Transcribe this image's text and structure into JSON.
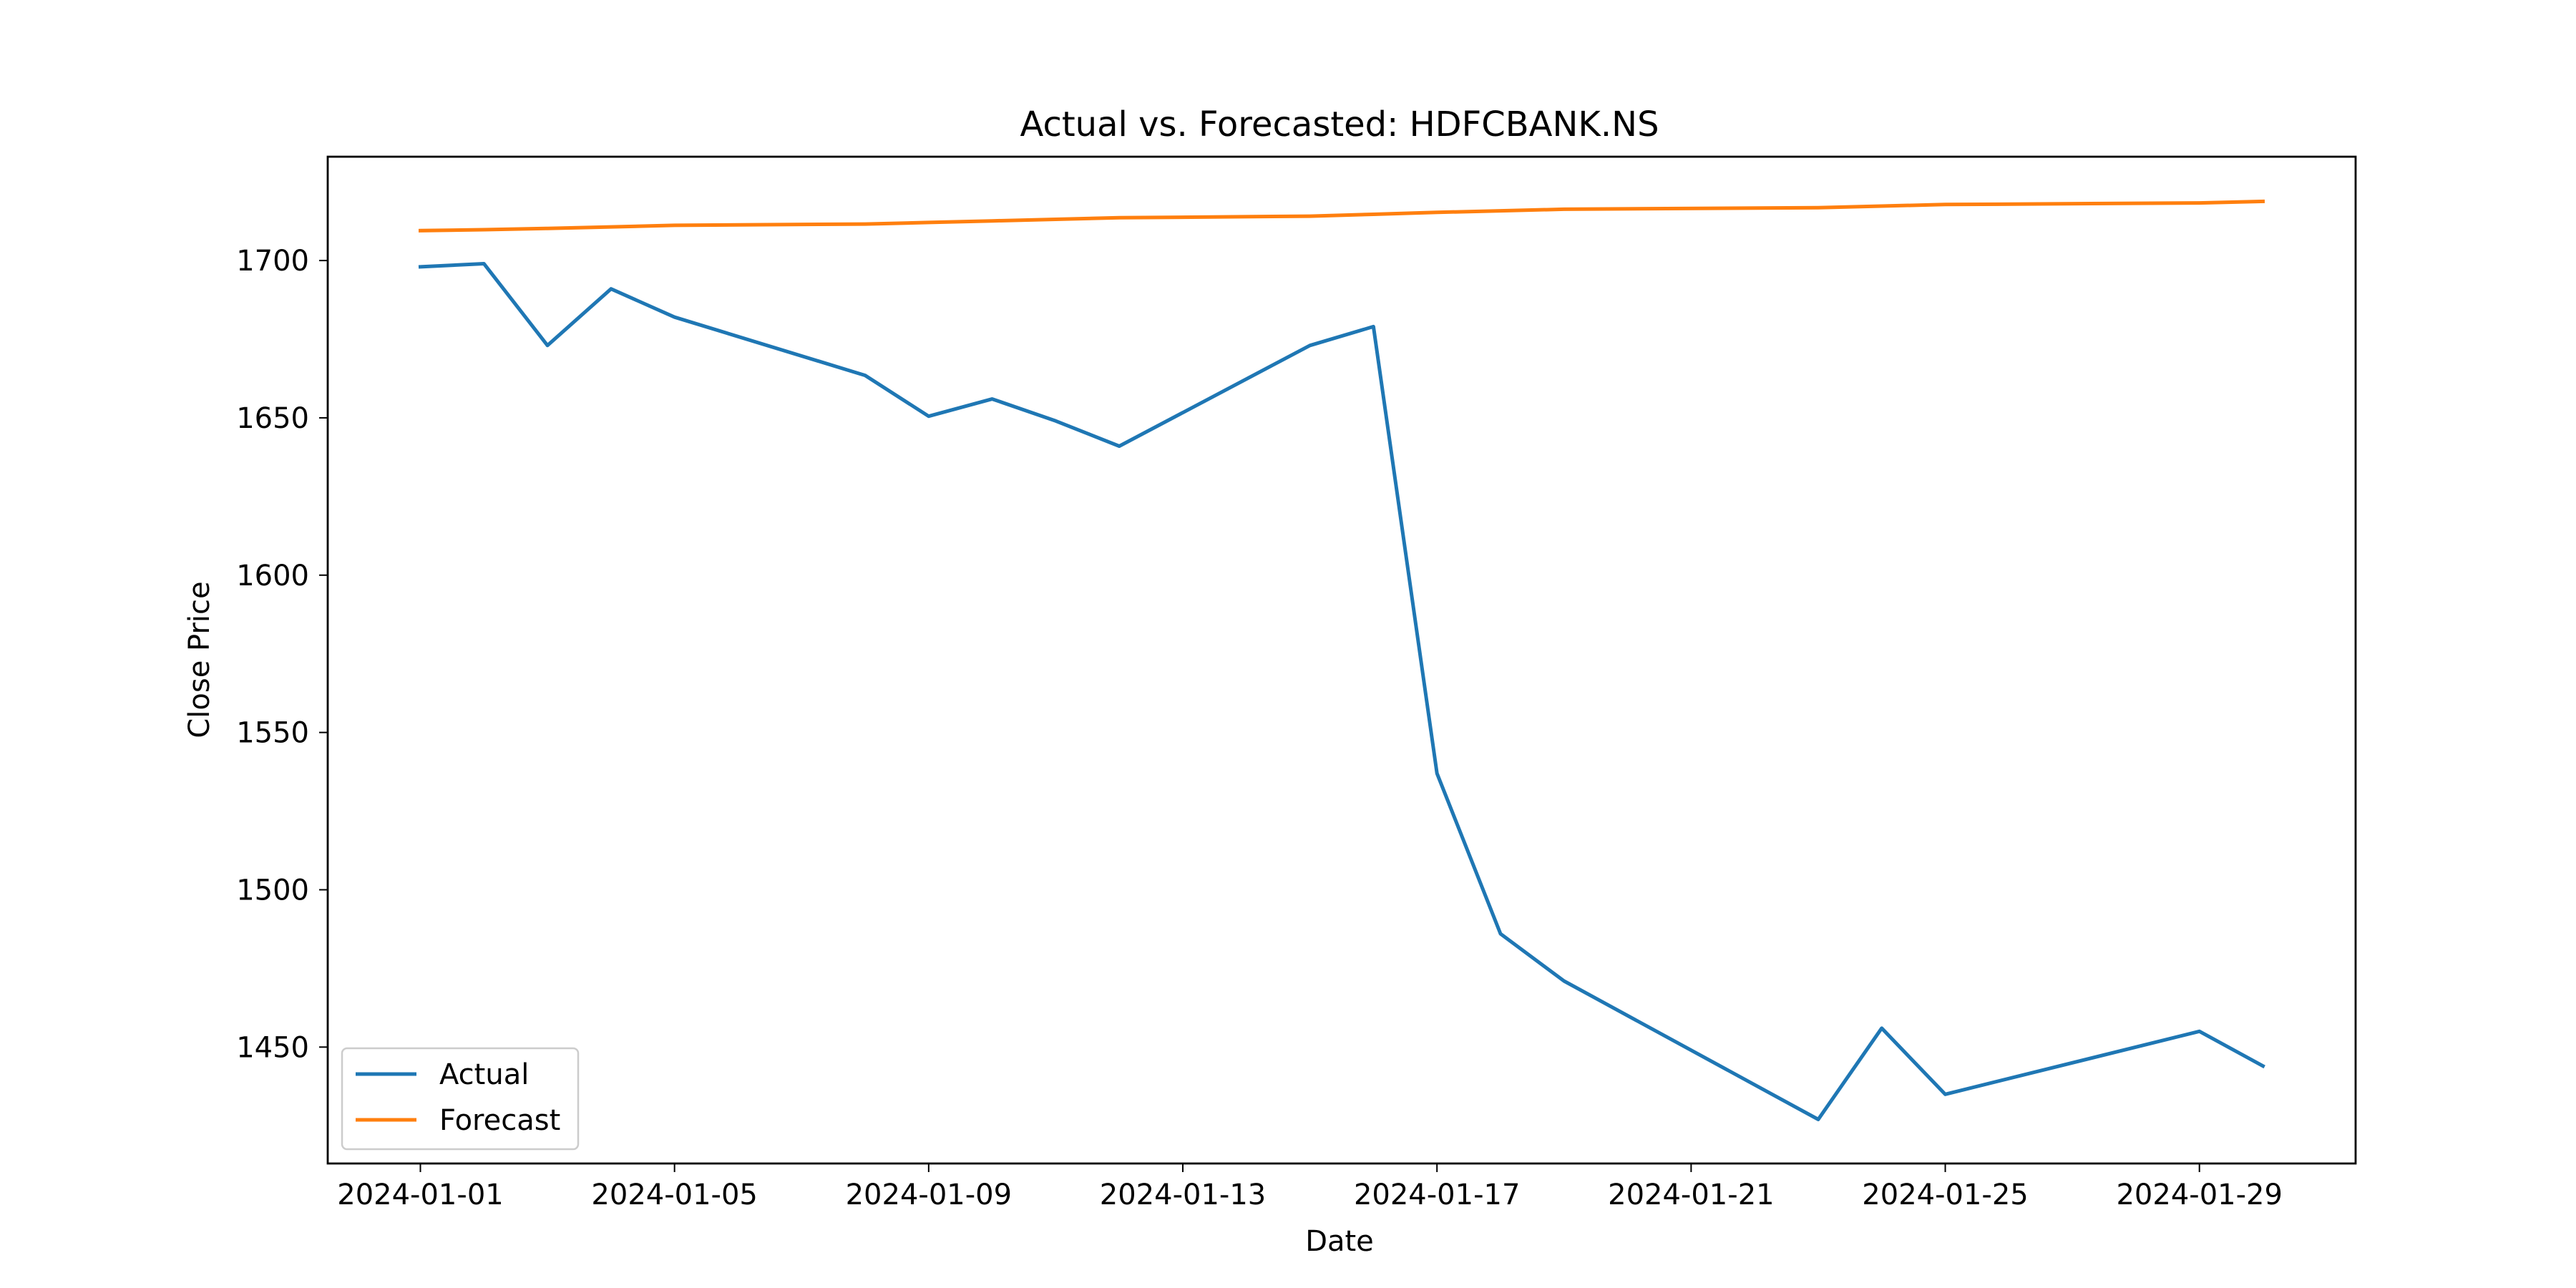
{
  "chart_data": {
    "type": "line",
    "title": "Actual vs. Forecasted: HDFCBANK.NS",
    "xlabel": "Date",
    "ylabel": "Close Price",
    "xlim": [
      "2023-12-30 13:00",
      "2024-01-31 11:00"
    ],
    "ylim": [
      1413,
      1733
    ],
    "x_ticks": [
      "2024-01-01",
      "2024-01-05",
      "2024-01-09",
      "2024-01-13",
      "2024-01-17",
      "2024-01-21",
      "2024-01-25",
      "2024-01-29"
    ],
    "y_ticks": [
      1450,
      1500,
      1550,
      1600,
      1650,
      1700
    ],
    "grid": false,
    "legend": {
      "position": "lower-left"
    },
    "series": [
      {
        "name": "Actual",
        "color": "#1f77b4",
        "points": [
          [
            "2024-01-01",
            1698
          ],
          [
            "2024-01-02",
            1699
          ],
          [
            "2024-01-03",
            1673
          ],
          [
            "2024-01-04",
            1691
          ],
          [
            "2024-01-05",
            1682
          ],
          [
            "2024-01-08",
            1663.5
          ],
          [
            "2024-01-09",
            1650.5
          ],
          [
            "2024-01-10",
            1656
          ],
          [
            "2024-01-11",
            1649
          ],
          [
            "2024-01-12",
            1641
          ],
          [
            "2024-01-15",
            1673
          ],
          [
            "2024-01-16",
            1679
          ],
          [
            "2024-01-17",
            1537
          ],
          [
            "2024-01-18",
            1486
          ],
          [
            "2024-01-19",
            1471
          ],
          [
            "2024-01-23",
            1427
          ],
          [
            "2024-01-24",
            1456
          ],
          [
            "2024-01-25",
            1435
          ],
          [
            "2024-01-29",
            1455
          ],
          [
            "2024-01-30",
            1444
          ]
        ]
      },
      {
        "name": "Forecast",
        "color": "#ff7f0e",
        "points": [
          [
            "2024-01-01",
            1709.5
          ],
          [
            "2024-01-02",
            1709.8
          ],
          [
            "2024-01-03",
            1710.2
          ],
          [
            "2024-01-04",
            1710.7
          ],
          [
            "2024-01-05",
            1711.2
          ],
          [
            "2024-01-08",
            1711.6
          ],
          [
            "2024-01-09",
            1712.1
          ],
          [
            "2024-01-10",
            1712.6
          ],
          [
            "2024-01-11",
            1713.1
          ],
          [
            "2024-01-12",
            1713.6
          ],
          [
            "2024-01-15",
            1714.1
          ],
          [
            "2024-01-16",
            1714.7
          ],
          [
            "2024-01-17",
            1715.3
          ],
          [
            "2024-01-18",
            1715.8
          ],
          [
            "2024-01-19",
            1716.3
          ],
          [
            "2024-01-23",
            1716.8
          ],
          [
            "2024-01-24",
            1717.3
          ],
          [
            "2024-01-25",
            1717.8
          ],
          [
            "2024-01-29",
            1718.3
          ],
          [
            "2024-01-30",
            1718.8
          ]
        ]
      }
    ]
  }
}
